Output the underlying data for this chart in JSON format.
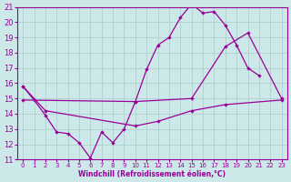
{
  "xlabel": "Windchill (Refroidissement éolien,°C)",
  "xlim": [
    -0.5,
    23.5
  ],
  "ylim": [
    11,
    21
  ],
  "xticks": [
    0,
    1,
    2,
    3,
    4,
    5,
    6,
    7,
    8,
    9,
    10,
    11,
    12,
    13,
    14,
    15,
    16,
    17,
    18,
    19,
    20,
    21,
    22,
    23
  ],
  "yticks": [
    11,
    12,
    13,
    14,
    15,
    16,
    17,
    18,
    19,
    20,
    21
  ],
  "bg_color": "#cce8e8",
  "line_color": "#990099",
  "grid_color": "#aacccc",
  "line1_x": [
    0,
    1,
    2,
    3,
    4,
    5,
    6,
    7,
    8,
    9,
    10,
    11,
    12,
    13,
    14,
    15,
    16,
    17,
    18,
    19,
    20,
    21
  ],
  "line1_y": [
    15.8,
    14.9,
    13.9,
    12.8,
    12.7,
    12.1,
    11.1,
    12.8,
    12.1,
    13.0,
    14.8,
    16.9,
    18.5,
    19.0,
    20.3,
    21.2,
    20.6,
    20.7,
    19.8,
    18.5,
    17.0,
    16.5
  ],
  "line2_x": [
    0,
    2,
    10,
    12,
    15,
    18,
    23
  ],
  "line2_y": [
    15.8,
    14.2,
    13.2,
    13.5,
    14.2,
    14.6,
    14.9
  ],
  "line3_x": [
    0,
    10,
    15,
    18,
    20,
    23
  ],
  "line3_y": [
    14.9,
    14.8,
    15.0,
    18.4,
    19.3,
    15.0
  ]
}
